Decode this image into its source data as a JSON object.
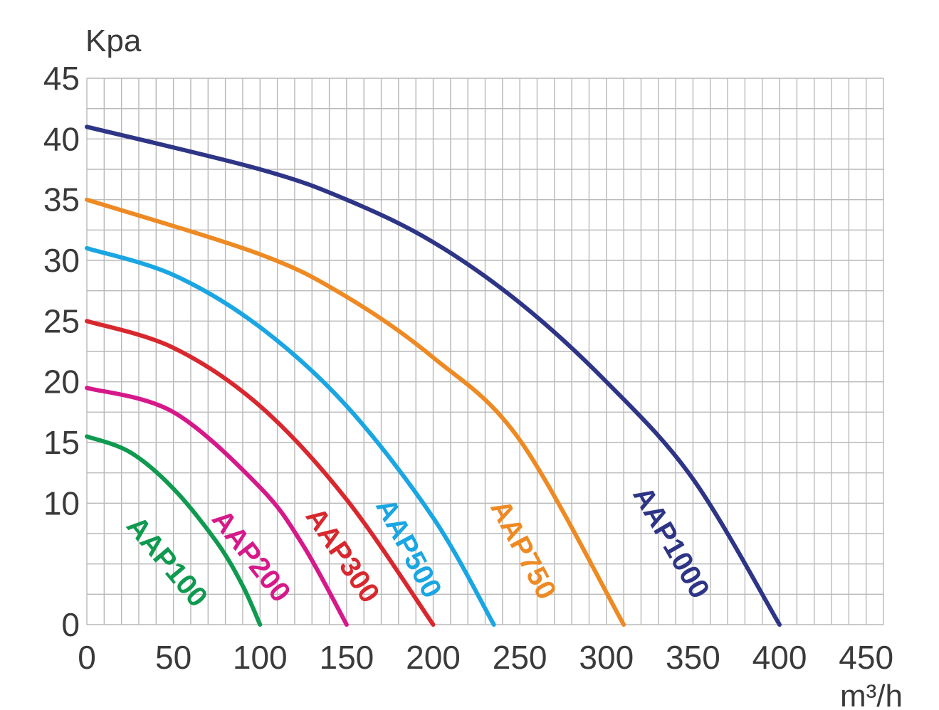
{
  "chart_data": {
    "type": "line",
    "xlabel": "m³/h",
    "ylabel": "Kpa",
    "xlim": [
      0,
      460
    ],
    "ylim": [
      0,
      45
    ],
    "xticks": [
      0,
      50,
      100,
      150,
      200,
      250,
      300,
      350,
      400,
      450
    ],
    "yticks": [
      0,
      10,
      15,
      20,
      25,
      30,
      35,
      40,
      45
    ],
    "grid": true,
    "legend": "inline labels on curves",
    "series": [
      {
        "name": "AAP100",
        "color": "#0f9a4f",
        "x": [
          0,
          25,
          50,
          75,
          90,
          100
        ],
        "y": [
          15.5,
          14.2,
          11.2,
          6.8,
          3.2,
          0
        ]
      },
      {
        "name": "AAP200",
        "color": "#d6198a",
        "x": [
          0,
          50,
          100,
          125,
          150
        ],
        "y": [
          19.5,
          17.5,
          11.3,
          6.5,
          0
        ]
      },
      {
        "name": "AAP300",
        "color": "#d8282e",
        "x": [
          0,
          50,
          100,
          150,
          200
        ],
        "y": [
          25,
          22.8,
          18,
          10.3,
          0
        ]
      },
      {
        "name": "AAP500",
        "color": "#1aa6e2",
        "x": [
          0,
          50,
          100,
          150,
          200,
          235
        ],
        "y": [
          31,
          28.8,
          24.5,
          18,
          8.8,
          0
        ]
      },
      {
        "name": "AAP750",
        "color": "#ee8a23",
        "x": [
          0,
          100,
          150,
          200,
          250,
          310
        ],
        "y": [
          35,
          30.5,
          27,
          22,
          15.2,
          0
        ]
      },
      {
        "name": "AAP1000",
        "color": "#2e3586",
        "x": [
          0,
          100,
          150,
          200,
          250,
          300,
          350,
          400
        ],
        "y": [
          41,
          37.5,
          35,
          31.5,
          26.5,
          20,
          12,
          0
        ]
      }
    ]
  }
}
